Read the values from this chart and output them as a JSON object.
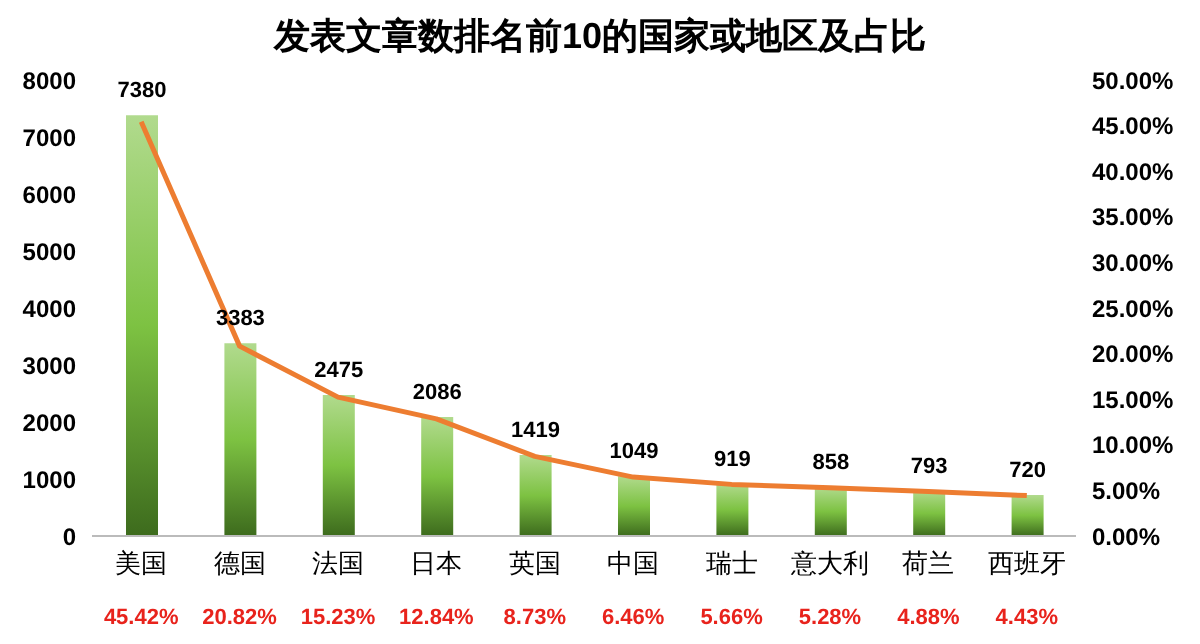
{
  "chart_data": {
    "type": "bar",
    "title": "发表文章数排名前10的国家或地区及占比",
    "categories": [
      "美国",
      "德国",
      "法国",
      "日本",
      "英国",
      "中国",
      "瑞士",
      "意大利",
      "荷兰",
      "西班牙"
    ],
    "series": [
      {
        "color": "#7dc242",
        "values": [
          7380,
          3383,
          2475,
          2086,
          1419,
          1049,
          919,
          858,
          793,
          720
        ]
      },
      {
        "type": "line",
        "axis": "y2",
        "color": "#ed7d31",
        "values": [
          45.42,
          20.82,
          15.23,
          12.84,
          8.73,
          6.46,
          5.66,
          5.28,
          4.88,
          4.43
        ],
        "value_labels": [
          "45.42%",
          "20.82%",
          "15.23%",
          "12.84%",
          "8.73%",
          "6.46%",
          "5.66%",
          "5.28%",
          "4.88%",
          "4.43%"
        ]
      }
    ],
    "data_labels": true,
    "ylim": [
      0,
      8000
    ],
    "yticks": [
      0,
      1000,
      2000,
      3000,
      4000,
      5000,
      6000,
      7000,
      8000
    ],
    "y2lim": [
      0,
      50
    ],
    "y2ticks": [
      {
        "value": 0,
        "label": "0.00%"
      },
      {
        "value": 5,
        "label": "5.00%"
      },
      {
        "value": 10,
        "label": "10.00%"
      },
      {
        "value": 15,
        "label": "15.00%"
      },
      {
        "value": 20,
        "label": "20.00%"
      },
      {
        "value": 25,
        "label": "25.00%"
      },
      {
        "value": 30,
        "label": "30.00%"
      },
      {
        "value": 35,
        "label": "35.00%"
      },
      {
        "value": 40,
        "label": "40.00%"
      },
      {
        "value": 45,
        "label": "45.00%"
      },
      {
        "value": 50,
        "label": "50.00%"
      }
    ],
    "marker": "none",
    "line_style": "solid",
    "grid": false,
    "legend": false
  }
}
